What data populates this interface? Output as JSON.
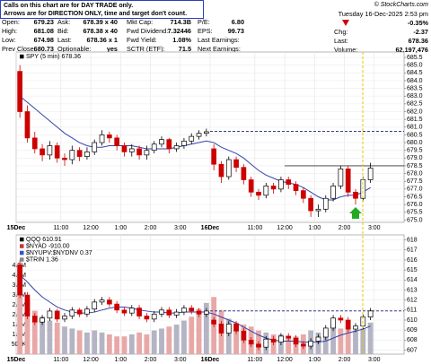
{
  "notice": [
    "Calls on this chart are for DAY TRADE only.",
    "Arrows are for DIRECTION ONLY, time and target don't count."
  ],
  "logo": "© StockCharts.com",
  "quote": {
    "rows": [
      [
        [
          "Open:",
          "679.23"
        ],
        [
          "Ask:",
          "678.39 x 40"
        ],
        [
          "Mkt Cap:",
          "714.3B"
        ],
        [
          "P/E:",
          "6.80"
        ]
      ],
      [
        [
          "High:",
          "681.08"
        ],
        [
          "Bid:",
          "678.38 x 40"
        ],
        [
          "Fwd Dividend:",
          "7.32446"
        ],
        [
          "EPS:",
          "99.73"
        ]
      ],
      [
        [
          "Low:",
          "674.98"
        ],
        [
          "Last:",
          "678.36 x 1"
        ],
        [
          "Fwd Yield:",
          "1.08%"
        ],
        [
          "Last Earnings:"
        ]
      ],
      [
        [
          "Prev Close:",
          "680.73"
        ],
        [
          "Optionable:",
          "yes"
        ],
        [
          "SCTR (ETF):",
          "71.5"
        ],
        [
          "Next Earnings:"
        ]
      ]
    ]
  },
  "status": {
    "datetime": "Tuesday 16-Dec-2025 2:53 pm",
    "pct_change": "-0.35%",
    "rows": [
      [
        "Chg:",
        "-2.37"
      ],
      [
        "Last:",
        "678.36"
      ],
      [
        "Volume:",
        "62,197,476"
      ]
    ]
  },
  "chart_data": [
    {
      "type": "candlestick",
      "legend": [
        {
          "text": "SPY (5 min) 678.36",
          "color": "#000000"
        }
      ],
      "up_color": "#000000",
      "down_color": "#cc0000",
      "ma_color": "#3344aa",
      "categories": [
        "15Dec",
        null,
        null,
        null,
        null,
        null,
        "11:00",
        null,
        null,
        null,
        "12:00",
        null,
        null,
        null,
        "1:00",
        null,
        null,
        null,
        "2:00",
        null,
        null,
        null,
        "3:00",
        null,
        null,
        null,
        "16Dec",
        null,
        null,
        null,
        null,
        null,
        "11:00",
        null,
        null,
        null,
        "12:00",
        null,
        null,
        null,
        "1:00",
        null,
        null,
        null,
        "2:00",
        null,
        null,
        null,
        "3:00",
        null,
        null,
        null
      ],
      "candles": [
        [
          684.6,
          685.0,
          681.6,
          682.0
        ],
        [
          682.0,
          682.4,
          680.0,
          680.3
        ],
        [
          680.3,
          680.7,
          679.3,
          679.6
        ],
        [
          679.6,
          679.9,
          678.8,
          679.2
        ],
        [
          679.2,
          680.1,
          678.9,
          679.8
        ],
        [
          679.8,
          680.0,
          678.7,
          679.0
        ],
        [
          679.0,
          679.3,
          678.5,
          678.9
        ],
        [
          678.9,
          679.8,
          678.6,
          679.5
        ],
        [
          679.5,
          679.7,
          678.8,
          679.1
        ],
        [
          679.1,
          679.7,
          678.9,
          679.4
        ],
        [
          679.4,
          680.2,
          679.2,
          680.0
        ],
        [
          680.0,
          680.8,
          679.8,
          680.5
        ],
        [
          680.5,
          680.7,
          680.0,
          680.3
        ],
        [
          680.3,
          680.5,
          679.5,
          679.8
        ],
        [
          679.8,
          680.0,
          679.1,
          679.4
        ],
        [
          679.4,
          679.9,
          679.1,
          679.6
        ],
        [
          679.6,
          679.8,
          678.9,
          679.2
        ],
        [
          679.2,
          679.8,
          678.9,
          679.5
        ],
        [
          679.5,
          680.1,
          679.3,
          679.9
        ],
        [
          679.9,
          680.4,
          679.7,
          680.2
        ],
        [
          680.2,
          680.3,
          679.3,
          679.6
        ],
        [
          679.6,
          680.0,
          679.4,
          679.8
        ],
        [
          679.8,
          680.3,
          679.6,
          680.1
        ],
        [
          680.1,
          680.6,
          679.9,
          680.4
        ],
        [
          680.4,
          680.8,
          680.2,
          680.6
        ],
        [
          680.6,
          680.9,
          680.4,
          680.7
        ],
        [
          679.6,
          679.9,
          678.2,
          678.6
        ],
        [
          678.6,
          678.8,
          677.4,
          677.8
        ],
        [
          677.8,
          679.1,
          677.6,
          678.9
        ],
        [
          678.9,
          679.1,
          678.1,
          678.4
        ],
        [
          678.4,
          678.6,
          677.3,
          677.6
        ],
        [
          677.6,
          677.8,
          676.5,
          676.8
        ],
        [
          676.8,
          677.0,
          676.3,
          676.6
        ],
        [
          676.6,
          677.4,
          676.4,
          677.2
        ],
        [
          677.2,
          677.4,
          676.7,
          677.0
        ],
        [
          677.0,
          677.8,
          676.8,
          677.6
        ],
        [
          677.6,
          677.8,
          677.0,
          677.3
        ],
        [
          677.3,
          677.5,
          676.6,
          676.9
        ],
        [
          676.9,
          677.1,
          676.1,
          676.4
        ],
        [
          676.4,
          676.6,
          675.2,
          675.6
        ],
        [
          675.6,
          676.0,
          675.2,
          675.7
        ],
        [
          675.7,
          676.6,
          675.5,
          676.4
        ],
        [
          676.4,
          677.4,
          676.2,
          677.2
        ],
        [
          677.2,
          678.5,
          677.0,
          678.3
        ],
        [
          678.3,
          678.5,
          676.5,
          676.8
        ],
        [
          676.8,
          677.0,
          676.0,
          676.4
        ],
        [
          676.4,
          677.8,
          676.2,
          677.6
        ],
        [
          677.6,
          678.7,
          677.4,
          678.36
        ],
        null,
        null,
        null,
        null
      ],
      "ma": [
        683.0,
        682.6,
        682.2,
        681.8,
        681.4,
        681.0,
        680.6,
        680.3,
        680.0,
        679.8,
        679.7,
        679.7,
        679.8,
        679.8,
        679.8,
        679.8,
        679.7,
        679.6,
        679.6,
        679.6,
        679.6,
        679.7,
        679.8,
        679.9,
        680.0,
        680.1,
        680.0,
        679.7,
        679.5,
        679.3,
        679.0,
        678.6,
        678.2,
        677.9,
        677.7,
        677.5,
        677.4,
        677.3,
        677.1,
        676.8,
        676.5,
        676.3,
        676.3,
        676.5,
        676.6,
        676.6,
        676.8,
        677.1,
        null,
        null,
        null,
        null
      ],
      "reference_lines": [
        {
          "value": 680.73,
          "start": 26,
          "color": "#1a237e",
          "dashed": true
        },
        {
          "value": 678.5,
          "start": 36,
          "color": "#333333",
          "dashed": false
        }
      ],
      "ylim": [
        674.85,
        685.85
      ],
      "yticks": [
        {
          "value": 675,
          "label": "675.0"
        },
        675.5,
        {
          "value": 676,
          "label": "676.0"
        },
        676.5,
        {
          "value": 677,
          "label": "677.0"
        },
        677.5,
        {
          "value": 678,
          "label": "678.0"
        },
        678.5,
        {
          "value": 679,
          "label": "679.0"
        },
        679.5,
        {
          "value": 680,
          "label": "680.0"
        },
        680.5,
        {
          "value": 681,
          "label": "681.0"
        },
        681.5,
        {
          "value": 682,
          "label": "682.0"
        },
        682.5,
        {
          "value": 683,
          "label": "683.0"
        },
        683.5,
        {
          "value": 684,
          "label": "684.0"
        },
        684.5,
        {
          "value": 685,
          "label": "685.0"
        },
        685.5
      ],
      "grid": true
    },
    {
      "type": "candlestick",
      "legend": [
        {
          "text": "QQQ 610.91",
          "color": "#000000"
        },
        {
          "text": "$NYAD -910.00",
          "color": "#cc3333"
        },
        {
          "text": "$NYUPV:$NYDNV 0.37",
          "color": "#3355cc"
        },
        {
          "text": "$TRIN 1.36",
          "color": "#888888"
        }
      ],
      "up_color": "#000000",
      "down_color": "#cc0000",
      "ma_color": "#3344aa",
      "volume_up_color": "#b4b4c4",
      "volume_down_color": "#e8a8a8",
      "categories": [
        "15Dec",
        null,
        null,
        null,
        null,
        null,
        "11:00",
        null,
        null,
        null,
        "12:00",
        null,
        null,
        null,
        "1:00",
        null,
        null,
        null,
        "2:00",
        null,
        null,
        null,
        "3:00",
        null,
        null,
        null,
        "16Dec",
        null,
        null,
        null,
        null,
        null,
        "11:00",
        null,
        null,
        null,
        "12:00",
        null,
        null,
        null,
        "1:00",
        null,
        null,
        null,
        "2:00",
        null,
        null,
        null,
        "3:00",
        null,
        null,
        null
      ],
      "candles": [
        [
          615.5,
          616.0,
          612.2,
          612.5
        ],
        [
          612.5,
          612.8,
          610.1,
          610.4
        ],
        [
          610.4,
          610.7,
          609.5,
          609.8
        ],
        [
          609.8,
          610.5,
          609.5,
          610.2
        ],
        [
          610.2,
          611.2,
          609.9,
          610.9
        ],
        [
          610.9,
          611.1,
          609.8,
          610.1
        ],
        [
          610.1,
          610.7,
          609.8,
          610.4
        ],
        [
          610.4,
          611.3,
          610.1,
          611.0
        ],
        [
          611.0,
          611.2,
          610.3,
          610.6
        ],
        [
          610.6,
          611.4,
          610.3,
          611.1
        ],
        [
          611.1,
          612.1,
          610.8,
          611.8
        ],
        [
          611.8,
          612.3,
          611.5,
          612.0
        ],
        [
          612.0,
          612.3,
          611.3,
          611.6
        ],
        [
          611.6,
          611.9,
          610.7,
          611.0
        ],
        [
          611.0,
          611.3,
          610.4,
          610.7
        ],
        [
          610.7,
          611.5,
          610.4,
          611.2
        ],
        [
          611.2,
          611.5,
          610.1,
          610.4
        ],
        [
          610.4,
          610.7,
          609.8,
          610.1
        ],
        [
          610.1,
          610.9,
          609.8,
          610.6
        ],
        [
          610.6,
          611.3,
          610.3,
          611.0
        ],
        [
          611.0,
          611.3,
          610.2,
          610.5
        ],
        [
          610.5,
          611.1,
          610.2,
          610.8
        ],
        [
          610.8,
          611.5,
          610.5,
          611.2
        ],
        [
          611.2,
          611.5,
          610.6,
          610.9
        ],
        [
          610.9,
          611.2,
          610.3,
          610.6
        ],
        [
          610.6,
          611.2,
          610.3,
          610.9
        ],
        [
          610.0,
          610.3,
          609.3,
          609.6
        ],
        [
          609.6,
          609.9,
          608.4,
          608.7
        ],
        [
          608.7,
          609.9,
          608.4,
          609.6
        ],
        [
          609.6,
          609.9,
          608.6,
          608.9
        ],
        [
          608.9,
          609.2,
          607.7,
          608.0
        ],
        [
          608.0,
          608.3,
          607.3,
          607.6
        ],
        [
          607.6,
          607.9,
          607.0,
          607.3
        ],
        [
          607.3,
          608.4,
          607.0,
          608.1
        ],
        [
          608.1,
          608.4,
          607.5,
          607.8
        ],
        [
          607.8,
          608.7,
          607.5,
          608.4
        ],
        [
          608.4,
          608.7,
          607.9,
          608.2
        ],
        [
          608.2,
          608.5,
          607.3,
          607.6
        ],
        [
          607.6,
          607.9,
          607.1,
          607.4
        ],
        [
          607.4,
          608.2,
          607.1,
          607.9
        ],
        [
          607.9,
          608.6,
          607.6,
          608.3
        ],
        [
          608.3,
          609.5,
          608.0,
          609.2
        ],
        [
          609.2,
          610.5,
          608.9,
          610.2
        ],
        [
          610.2,
          610.5,
          609.7,
          610.0
        ],
        [
          610.0,
          610.3,
          608.8,
          609.1
        ],
        [
          609.1,
          609.7,
          608.8,
          609.4
        ],
        [
          609.4,
          610.6,
          609.1,
          610.3
        ],
        [
          610.3,
          611.2,
          610.0,
          610.91
        ],
        null,
        null,
        null,
        null
      ],
      "ma": [
        614.5,
        613.8,
        613.0,
        612.3,
        611.8,
        611.3,
        611.0,
        610.8,
        610.7,
        610.7,
        610.8,
        611.0,
        611.2,
        611.3,
        611.3,
        611.2,
        611.0,
        610.9,
        610.8,
        610.8,
        610.7,
        610.7,
        610.8,
        610.8,
        610.8,
        610.8,
        610.6,
        610.3,
        610.0,
        609.7,
        609.3,
        608.9,
        608.5,
        608.2,
        608.0,
        607.9,
        607.9,
        607.9,
        607.8,
        607.8,
        607.8,
        607.9,
        608.2,
        608.5,
        608.7,
        608.9,
        609.1,
        609.4,
        null,
        null,
        null,
        null
      ],
      "volume": [
        4600000,
        2800000,
        2200000,
        1900000,
        1700000,
        1600000,
        1400000,
        1300000,
        1200000,
        1100000,
        1200000,
        1100000,
        1000000,
        900000,
        900000,
        1000000,
        1100000,
        1000000,
        1200000,
        1300000,
        1400000,
        1500000,
        1700000,
        1900000,
        2300000,
        2600000,
        2900000,
        2200000,
        1800000,
        1600000,
        1500000,
        1400000,
        1200000,
        1100000,
        1000000,
        1000000,
        900000,
        900000,
        1000000,
        1200000,
        1100000,
        1200000,
        1500000,
        1300000,
        1400000,
        1200000,
        1300000,
        1600000,
        null,
        null,
        null,
        null
      ],
      "reference_lines": [
        {
          "value": 610.91,
          "start": 26,
          "color": "#1a237e",
          "dashed": true
        }
      ],
      "ylim": [
        606.6,
        618.5
      ],
      "yticks": [
        607,
        608,
        609,
        610,
        611,
        612,
        613,
        614,
        615,
        616,
        617,
        618
      ],
      "vlim": [
        0,
        6050000
      ],
      "vticks": [
        {
          "value": 500000,
          "label": "500K"
        },
        {
          "value": 1000000,
          "label": "1.0M"
        },
        {
          "value": 1500000,
          "label": "1.5M"
        },
        {
          "value": 2000000,
          "label": "2.0M"
        },
        {
          "value": 2500000,
          "label": "2.5M"
        },
        {
          "value": 3000000,
          "label": "3.0M"
        },
        {
          "value": 3500000,
          "label": "3.5M"
        },
        {
          "value": 4000000,
          "label": "4.0M"
        },
        {
          "value": 4500000,
          "label": "4.5M"
        }
      ],
      "grid": true
    }
  ]
}
